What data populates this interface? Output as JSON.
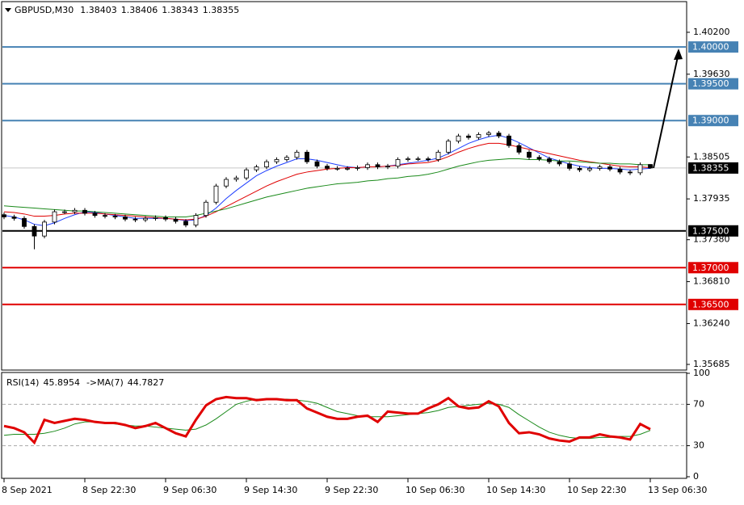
{
  "chart_data": [
    {
      "type": "candlestick",
      "title": "GBPUSD,M30",
      "categories": [
        "8 Sep 2021",
        null,
        null,
        null,
        null,
        null,
        null,
        null,
        "8 Sep 22:30",
        null,
        null,
        null,
        null,
        null,
        null,
        null,
        "9 Sep 06:30",
        null,
        null,
        null,
        null,
        null,
        null,
        null,
        "9 Sep 14:30",
        null,
        null,
        null,
        null,
        null,
        null,
        null,
        "9 Sep 22:30",
        null,
        null,
        null,
        null,
        null,
        null,
        null,
        "10 Sep 06:30",
        null,
        null,
        null,
        null,
        null,
        null,
        null,
        "10 Sep 14:30",
        null,
        null,
        null,
        null,
        null,
        null,
        null,
        "10 Sep 22:30",
        null,
        null,
        null,
        null,
        null,
        null,
        null,
        "13 Sep 06:30"
      ],
      "open": [
        1.3772,
        1.3769,
        1.3767,
        1.3756,
        1.3743,
        1.3762,
        1.3776,
        1.3776,
        1.3778,
        1.3774,
        1.3771,
        1.377,
        1.3769,
        1.3766,
        1.3765,
        1.3767,
        1.3768,
        1.3766,
        1.3763,
        1.3758,
        1.3771,
        1.3789,
        1.3811,
        1.382,
        1.3822,
        1.3833,
        1.3837,
        1.3844,
        1.3847,
        1.385,
        1.3857,
        1.3844,
        1.3838,
        1.3835,
        1.3835,
        1.3835,
        1.3836,
        1.384,
        1.3837,
        1.3838,
        1.3847,
        1.3848,
        1.3848,
        1.3847,
        1.3857,
        1.3872,
        1.3879,
        1.3877,
        1.3881,
        1.3883,
        1.3879,
        1.3866,
        1.3857,
        1.385,
        1.3848,
        1.3844,
        1.3841,
        1.3835,
        1.3833,
        1.3835,
        1.3837,
        1.3834,
        1.383,
        1.3829,
        1.38403
      ],
      "high": [
        1.3775,
        1.3772,
        1.377,
        1.3759,
        1.3765,
        1.3779,
        1.3779,
        1.3781,
        1.3781,
        1.3777,
        1.3774,
        1.3773,
        1.3772,
        1.3769,
        1.377,
        1.3771,
        1.3771,
        1.3769,
        1.3766,
        1.3774,
        1.3792,
        1.3814,
        1.3823,
        1.3825,
        1.3836,
        1.384,
        1.3847,
        1.385,
        1.3853,
        1.386,
        1.386,
        1.3847,
        1.3841,
        1.3838,
        1.3838,
        1.3839,
        1.3843,
        1.3843,
        1.3841,
        1.385,
        1.3851,
        1.3851,
        1.3851,
        1.386,
        1.3875,
        1.3882,
        1.3882,
        1.3884,
        1.3886,
        1.3886,
        1.3882,
        1.3869,
        1.386,
        1.3853,
        1.3851,
        1.3847,
        1.3844,
        1.3838,
        1.3838,
        1.384,
        1.384,
        1.3837,
        1.3833,
        1.3843,
        1.38406
      ],
      "low": [
        1.3766,
        1.3764,
        1.3753,
        1.3725,
        1.374,
        1.3759,
        1.3773,
        1.3773,
        1.3771,
        1.3768,
        1.3767,
        1.3766,
        1.3763,
        1.3762,
        1.3762,
        1.3764,
        1.3763,
        1.376,
        1.3755,
        1.3755,
        1.3768,
        1.3786,
        1.3808,
        1.3817,
        1.3819,
        1.383,
        1.3834,
        1.3841,
        1.3844,
        1.3847,
        1.3841,
        1.3835,
        1.3832,
        1.3832,
        1.3832,
        1.3832,
        1.3833,
        1.3834,
        1.3834,
        1.3835,
        1.3844,
        1.3845,
        1.3844,
        1.3844,
        1.3854,
        1.3869,
        1.3874,
        1.3874,
        1.3878,
        1.3876,
        1.3863,
        1.3854,
        1.3847,
        1.3845,
        1.3841,
        1.3838,
        1.3832,
        1.383,
        1.383,
        1.3832,
        1.3831,
        1.3827,
        1.3826,
        1.3826,
        1.38343
      ],
      "close": [
        1.3769,
        1.3767,
        1.3756,
        1.3743,
        1.3762,
        1.3776,
        1.3776,
        1.3778,
        1.3774,
        1.3771,
        1.377,
        1.3769,
        1.3766,
        1.3765,
        1.3767,
        1.3768,
        1.3766,
        1.3763,
        1.3758,
        1.3771,
        1.3789,
        1.3811,
        1.382,
        1.3822,
        1.3833,
        1.3837,
        1.3844,
        1.3847,
        1.385,
        1.3857,
        1.3844,
        1.3838,
        1.3835,
        1.3835,
        1.3835,
        1.3836,
        1.384,
        1.3837,
        1.3838,
        1.3847,
        1.3848,
        1.3848,
        1.3847,
        1.3857,
        1.3872,
        1.3879,
        1.3877,
        1.3881,
        1.3883,
        1.3879,
        1.3866,
        1.3857,
        1.385,
        1.3848,
        1.3844,
        1.3841,
        1.3835,
        1.3833,
        1.3835,
        1.3837,
        1.3834,
        1.383,
        1.3829,
        1.384,
        1.38355
      ],
      "series": [
        {
          "color": "#1f3fff",
          "values": [
            1.3771,
            1.3769,
            1.3765,
            1.3759,
            1.3757,
            1.3761,
            1.3767,
            1.3772,
            1.3776,
            1.3775,
            1.3773,
            1.3771,
            1.3769,
            1.3767,
            1.3767,
            1.3767,
            1.3767,
            1.3766,
            1.3764,
            1.3765,
            1.3771,
            1.3781,
            1.3794,
            1.3805,
            1.3815,
            1.3825,
            1.3832,
            1.3838,
            1.3843,
            1.3848,
            1.3848,
            1.3846,
            1.3843,
            1.384,
            1.3837,
            1.3836,
            1.3837,
            1.3837,
            1.3838,
            1.384,
            1.3842,
            1.3844,
            1.3846,
            1.3849,
            1.3855,
            1.3862,
            1.3869,
            1.3874,
            1.3878,
            1.388,
            1.3876,
            1.387,
            1.3863,
            1.3856,
            1.3849,
            1.3845,
            1.3841,
            1.3838,
            1.3836,
            1.3835,
            1.3835,
            1.3834,
            1.3833,
            1.3834,
            1.3835
          ]
        },
        {
          "color": "#e00000",
          "values": [
            1.3776,
            1.3775,
            1.3773,
            1.377,
            1.377,
            1.3771,
            1.3773,
            1.3774,
            1.3774,
            1.3774,
            1.3773,
            1.3772,
            1.3771,
            1.377,
            1.3769,
            1.3768,
            1.3767,
            1.3766,
            1.3765,
            1.3766,
            1.377,
            1.3776,
            1.3783,
            1.379,
            1.3797,
            1.3804,
            1.3811,
            1.3817,
            1.3822,
            1.3827,
            1.383,
            1.3832,
            1.3834,
            1.3835,
            1.3836,
            1.3836,
            1.3837,
            1.3837,
            1.3838,
            1.3839,
            1.3841,
            1.3842,
            1.3843,
            1.3846,
            1.3851,
            1.3857,
            1.3862,
            1.3866,
            1.3869,
            1.3869,
            1.3867,
            1.3864,
            1.3861,
            1.3858,
            1.3855,
            1.3852,
            1.3849,
            1.3846,
            1.3844,
            1.3842,
            1.384,
            1.3838,
            1.3837,
            1.3837,
            1.3836
          ]
        },
        {
          "color": "#1a8a1a",
          "values": [
            1.3784,
            1.3783,
            1.3782,
            1.3781,
            1.378,
            1.3779,
            1.3778,
            1.3777,
            1.3777,
            1.3776,
            1.3775,
            1.3774,
            1.3773,
            1.3772,
            1.3771,
            1.377,
            1.3769,
            1.3769,
            1.3769,
            1.3771,
            1.3774,
            1.3777,
            1.378,
            1.3784,
            1.3788,
            1.3792,
            1.3796,
            1.3799,
            1.3802,
            1.3805,
            1.3808,
            1.381,
            1.3812,
            1.3814,
            1.3815,
            1.3816,
            1.3818,
            1.3819,
            1.3821,
            1.3822,
            1.3824,
            1.3825,
            1.3827,
            1.383,
            1.3834,
            1.3838,
            1.3841,
            1.3844,
            1.3846,
            1.3847,
            1.3848,
            1.3848,
            1.3847,
            1.3847,
            1.3846,
            1.3845,
            1.3845,
            1.3844,
            1.3843,
            1.3842,
            1.3842,
            1.3841,
            1.3841,
            1.384,
            1.384
          ]
        }
      ],
      "levels": [
        {
          "value": 1.4,
          "label": "1.40000",
          "color": "#4682b4"
        },
        {
          "value": 1.395,
          "label": "1.39500",
          "color": "#4682b4"
        },
        {
          "value": 1.39,
          "label": "1.39000",
          "color": "#4682b4"
        },
        {
          "value": 1.375,
          "label": "1.37500",
          "color": "#000000"
        },
        {
          "value": 1.37,
          "label": "1.37000",
          "color": "#e00000"
        },
        {
          "value": 1.365,
          "label": "1.36500",
          "color": "#e00000"
        }
      ],
      "ylim": [
        1.35608,
        1.40617
      ],
      "yticks": [
        {
          "value": 1.402,
          "label": "1.40200"
        },
        {
          "value": 1.3963,
          "label": "1.39630"
        },
        {
          "value": 1.38505,
          "label": "1.38505"
        },
        {
          "value": 1.37935,
          "label": "1.37935"
        },
        {
          "value": 1.3738,
          "label": "1.37380"
        },
        {
          "value": 1.3681,
          "label": "1.36810"
        },
        {
          "value": 1.3624,
          "label": "1.36240"
        },
        {
          "value": 1.35685,
          "label": "1.35685"
        }
      ]
    },
    {
      "type": "line",
      "series": [
        {
          "name": "RSI(14)",
          "color": "#e00000",
          "values": [
            49,
            47,
            43,
            33,
            55,
            52,
            54,
            56,
            55,
            53,
            52,
            52,
            50,
            47,
            49,
            52,
            47,
            42,
            39,
            55,
            69,
            75,
            77,
            76,
            76,
            74,
            75,
            75,
            74,
            74,
            66,
            62,
            58,
            56,
            56,
            58,
            59,
            53,
            63,
            62,
            61,
            61,
            66,
            70,
            76,
            68,
            66,
            67,
            73,
            68,
            52,
            42,
            43,
            41,
            37,
            35,
            34,
            38,
            38,
            41,
            39,
            38,
            36,
            51,
            45.8954
          ]
        },
        {
          "name": "->MA(7)",
          "color": "#1a8a1a",
          "values": [
            40,
            41,
            41,
            41,
            42,
            44,
            47,
            51,
            53,
            53,
            52,
            51,
            50,
            49,
            49,
            48,
            47,
            46,
            45,
            46,
            50,
            56,
            63,
            70,
            73,
            75,
            75,
            75,
            75,
            74,
            73,
            71,
            67,
            63,
            61,
            59,
            58,
            58,
            58,
            59,
            60,
            61,
            62,
            64,
            67,
            68,
            69,
            70,
            71,
            70,
            67,
            60,
            54,
            48,
            43,
            40,
            38,
            37,
            37,
            38,
            38,
            39,
            39,
            41,
            44.7827
          ]
        }
      ],
      "levels": [
        70,
        30
      ],
      "ylim": [
        0,
        100
      ],
      "yticks": [
        100,
        70,
        30,
        0
      ]
    }
  ]
}
